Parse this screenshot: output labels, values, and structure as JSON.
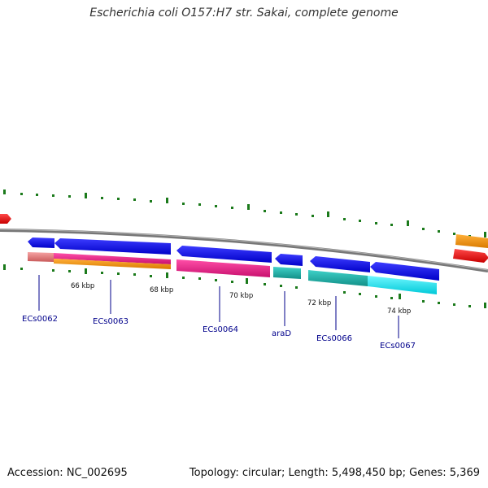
{
  "title": "Escherichia coli O157:H7 str. Sakai, complete genome",
  "accession_text": "Accession: NC_002695",
  "topology_text": "Topology: circular; Length: 5,498,450 bp; Genes: 5,369",
  "scale_labels": [
    "66 kbp",
    "68 kbp",
    "70 kbp",
    "72 kbp",
    "74 kbp"
  ],
  "gene_labels": [
    "ECs0062",
    "ECs0063",
    "ECs0064",
    "araD",
    "ECs0066",
    "ECs0067"
  ],
  "colors": {
    "backbone": "#7f7f7f",
    "forward_gene": "#1a1aff",
    "tick": "#1b7a1b",
    "label": "#00008b",
    "red": "#ff1a1a",
    "orange": "#ff9900",
    "pink": "#ee1f8a",
    "salmon": "#f08080",
    "teal": "#20b2aa",
    "cyan": "#00e5ee"
  }
}
